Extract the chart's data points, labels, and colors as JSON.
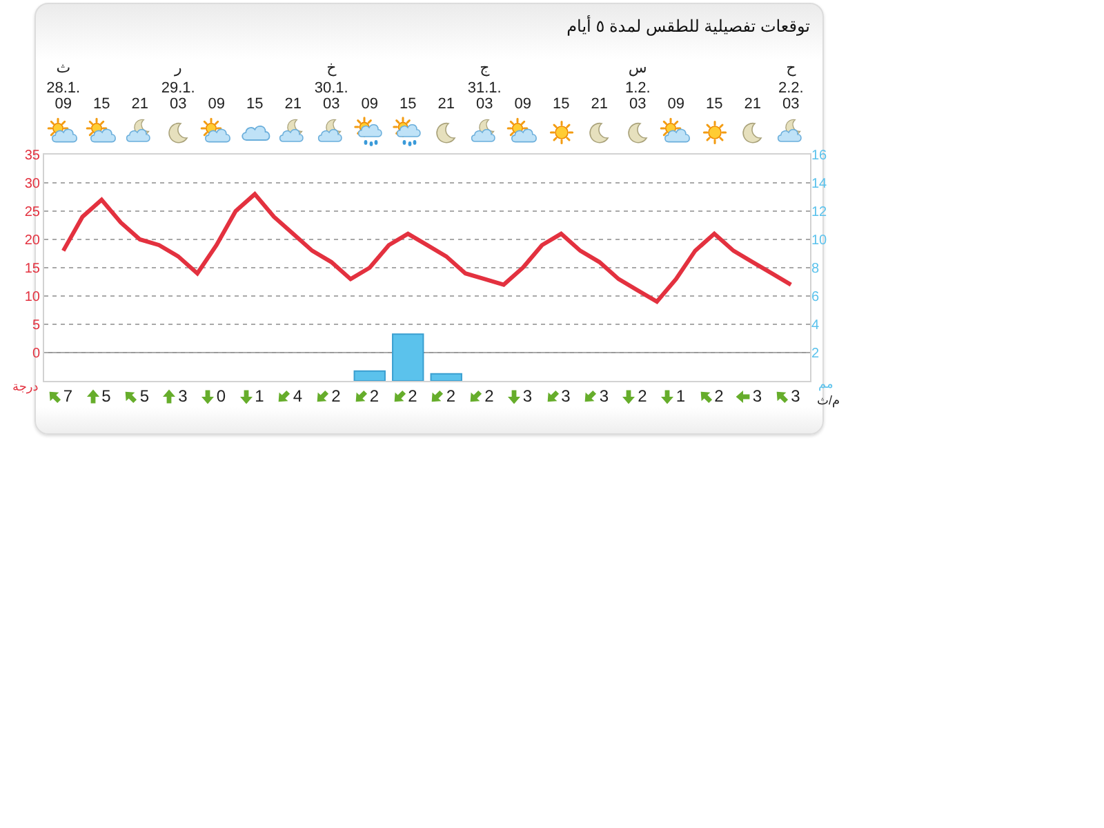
{
  "chart_data": [
    {
      "type": "line",
      "title": "توقعات تفصيلية للطقس لمدة ٥ أيام",
      "ylabel": "درجة",
      "y2label": "مم",
      "x": [
        "--01-28T09:00",
        "--01-28T12:00",
        "--01-28T15:00",
        "--01-28T18:00",
        "--01-28T21:00",
        "--01-29T00:00",
        "--01-29T03:00",
        "--01-29T06:00",
        "--01-29T09:00",
        "--01-29T12:00",
        "--01-29T15:00",
        "--01-29T18:00",
        "--01-29T21:00",
        "--01-30T00:00",
        "--01-30T03:00",
        "--01-30T06:00",
        "--01-30T09:00",
        "--01-30T12:00",
        "--01-30T15:00",
        "--01-30T18:00",
        "--01-30T21:00",
        "--01-31T00:00",
        "--01-31T03:00",
        "--01-31T06:00",
        "--01-31T09:00",
        "--01-31T12:00",
        "--01-31T15:00",
        "--01-31T18:00",
        "--01-31T21:00",
        "--02-01T00:00",
        "--02-01T03:00",
        "--02-01T06:00",
        "--02-01T09:00",
        "--02-01T12:00",
        "--02-01T15:00",
        "--02-01T18:00",
        "--02-01T21:00",
        "--02-02T00:00",
        "--02-02T03:00"
      ],
      "series": [
        {
          "color": "#e3313f",
          "values": [
            18,
            24,
            27,
            23,
            20,
            19,
            17,
            14,
            19,
            25,
            28,
            24,
            21,
            18,
            16,
            13,
            15,
            19,
            21,
            19,
            17,
            14,
            13,
            12,
            15,
            19,
            21,
            18,
            16,
            13,
            11,
            9,
            13,
            18,
            21,
            18,
            16,
            14,
            12
          ]
        },
        {
          "type": "bar",
          "axis": "y2",
          "color": "#5bc2ec",
          "x": [
            "--01-30T09:00",
            "--01-30T15:00",
            "--01-30T21:00"
          ],
          "values": [
            0.7,
            3.3,
            0.5
          ]
        }
      ],
      "xlim": [
        "--01-28T06:00",
        "--02-02T06:00"
      ],
      "xticks": [
        {
          "value": "--01-28T09:00",
          "label": "09"
        },
        {
          "value": "--01-28T15:00",
          "label": "15"
        },
        {
          "value": "--01-28T21:00",
          "label": "21"
        },
        {
          "value": "--01-29T03:00",
          "label": "03"
        },
        {
          "value": "--01-29T09:00",
          "label": "09"
        },
        {
          "value": "--01-29T15:00",
          "label": "15"
        },
        {
          "value": "--01-29T21:00",
          "label": "21"
        },
        {
          "value": "--01-30T03:00",
          "label": "03"
        },
        {
          "value": "--01-30T09:00",
          "label": "09"
        },
        {
          "value": "--01-30T15:00",
          "label": "15"
        },
        {
          "value": "--01-30T21:00",
          "label": "21"
        },
        {
          "value": "--01-31T03:00",
          "label": "03"
        },
        {
          "value": "--01-31T09:00",
          "label": "09"
        },
        {
          "value": "--01-31T15:00",
          "label": "15"
        },
        {
          "value": "--01-31T21:00",
          "label": "21"
        },
        {
          "value": "--02-01T03:00",
          "label": "03"
        },
        {
          "value": "--02-01T09:00",
          "label": "09"
        },
        {
          "value": "--02-01T15:00",
          "label": "15"
        },
        {
          "value": "--02-01T21:00",
          "label": "21"
        },
        {
          "value": "--02-02T03:00",
          "label": "03"
        }
      ],
      "x2lim": [
        "--01-28T06:00",
        "--02-02T06:00"
      ],
      "x2ticks": [
        {
          "value": "--01-28T09:00",
          "label": "ث\n28.1."
        },
        {
          "value": "--01-29T03:00",
          "label": "ر\n29.1."
        },
        {
          "value": "--01-30T03:00",
          "label": "خ\n30.1."
        },
        {
          "value": "--01-31T03:00",
          "label": "ج\n31.1."
        },
        {
          "value": "--02-01T03:00",
          "label": "س\n1.2."
        },
        {
          "value": "--02-02T03:00",
          "label": "ح\n2.2."
        }
      ],
      "ylim": [
        -5,
        35
      ],
      "yticks": [
        0,
        5,
        10,
        15,
        20,
        25,
        30,
        35
      ],
      "y2lim": [
        0,
        16
      ],
      "y2ticks": [
        2,
        4,
        6,
        8,
        10,
        12,
        14,
        16
      ],
      "grid": "y",
      "ref_lines": [
        {
          "axis": "y",
          "value": 0,
          "color": "#9a9a9a"
        }
      ]
    },
    {
      "type": "other",
      "categories": [
        null,
        null,
        null,
        null,
        null,
        null,
        null,
        null,
        null,
        null,
        null,
        null,
        null,
        null,
        null,
        null,
        null,
        null,
        null,
        null
      ],
      "values": [
        7,
        5,
        5,
        3,
        0,
        1,
        4,
        2,
        2,
        2,
        2,
        2,
        3,
        3,
        3,
        2,
        1,
        2,
        3,
        3
      ],
      "ylabel": "م/ث",
      "data_labels": true
    }
  ]
}
